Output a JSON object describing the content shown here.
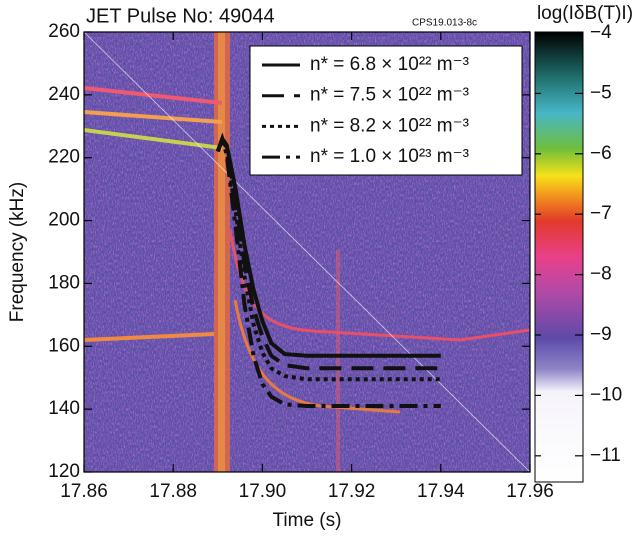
{
  "chart_data": {
    "type": "line",
    "title": "JET Pulse No: 49044",
    "annotation": "CPS19.013-8c",
    "x_label": "Time (s)",
    "y_label": "Frequency (kHz)",
    "colorbar_label": "log(IδB(T)I)",
    "xlim": [
      17.86,
      17.96
    ],
    "xticks": [
      17.86,
      17.88,
      {
        "value": 17.9,
        "label": "17.90"
      },
      17.92,
      17.94,
      17.96
    ],
    "ylim": [
      120,
      260
    ],
    "yticks": [
      120,
      140,
      160,
      180,
      200,
      220,
      240,
      260
    ],
    "clim": [
      -11.45,
      -4
    ],
    "cticks": [
      {
        "value": -4,
        "label": "−4"
      },
      {
        "value": -5,
        "label": "−5"
      },
      {
        "value": -6,
        "label": "−6"
      },
      {
        "value": -7,
        "label": "−7"
      },
      {
        "value": -8,
        "label": "−8"
      },
      {
        "value": -9,
        "label": "−9"
      },
      {
        "value": -10,
        "label": "−10"
      },
      {
        "value": -11,
        "label": "−11"
      }
    ],
    "series": [
      {
        "name": "n* = 6.8 × 10²² m⁻³",
        "color": "#111111",
        "dash": "solid",
        "x": [
          17.89,
          17.891,
          17.892,
          17.894,
          17.896,
          17.898,
          17.9,
          17.902,
          17.905,
          17.91,
          17.92,
          17.93,
          17.94
        ],
        "values": [
          222,
          226,
          224,
          210,
          192,
          178,
          168,
          161,
          157.5,
          157,
          157,
          157,
          157
        ]
      },
      {
        "name": "n* = 7.5 × 10²² m⁻³",
        "color": "#111111",
        "dash": "dashed",
        "x": [
          17.89,
          17.891,
          17.892,
          17.894,
          17.896,
          17.898,
          17.9,
          17.902,
          17.905,
          17.91,
          17.92,
          17.93,
          17.94
        ],
        "values": [
          222,
          226,
          223,
          206,
          186,
          172,
          163,
          157,
          154,
          153,
          153,
          153,
          153
        ]
      },
      {
        "name": "n* = 8.2 × 10²² m⁻³",
        "color": "#111111",
        "dash": "dotted",
        "x": [
          17.89,
          17.891,
          17.892,
          17.894,
          17.896,
          17.898,
          17.9,
          17.902,
          17.905,
          17.91,
          17.92,
          17.93,
          17.94
        ],
        "values": [
          222,
          226,
          222,
          203,
          182,
          167,
          158,
          153,
          150.5,
          149.5,
          149.5,
          149.5,
          149.5
        ]
      },
      {
        "name": "n* = 1.0 × 10²³ m⁻³",
        "color": "#111111",
        "dash": "dashdot",
        "x": [
          17.89,
          17.891,
          17.892,
          17.894,
          17.896,
          17.898,
          17.9,
          17.902,
          17.905,
          17.91,
          17.92,
          17.93,
          17.94
        ],
        "values": [
          222,
          226,
          221,
          198,
          173,
          157,
          148,
          144,
          141.5,
          141,
          141,
          141,
          141
        ]
      }
    ]
  }
}
